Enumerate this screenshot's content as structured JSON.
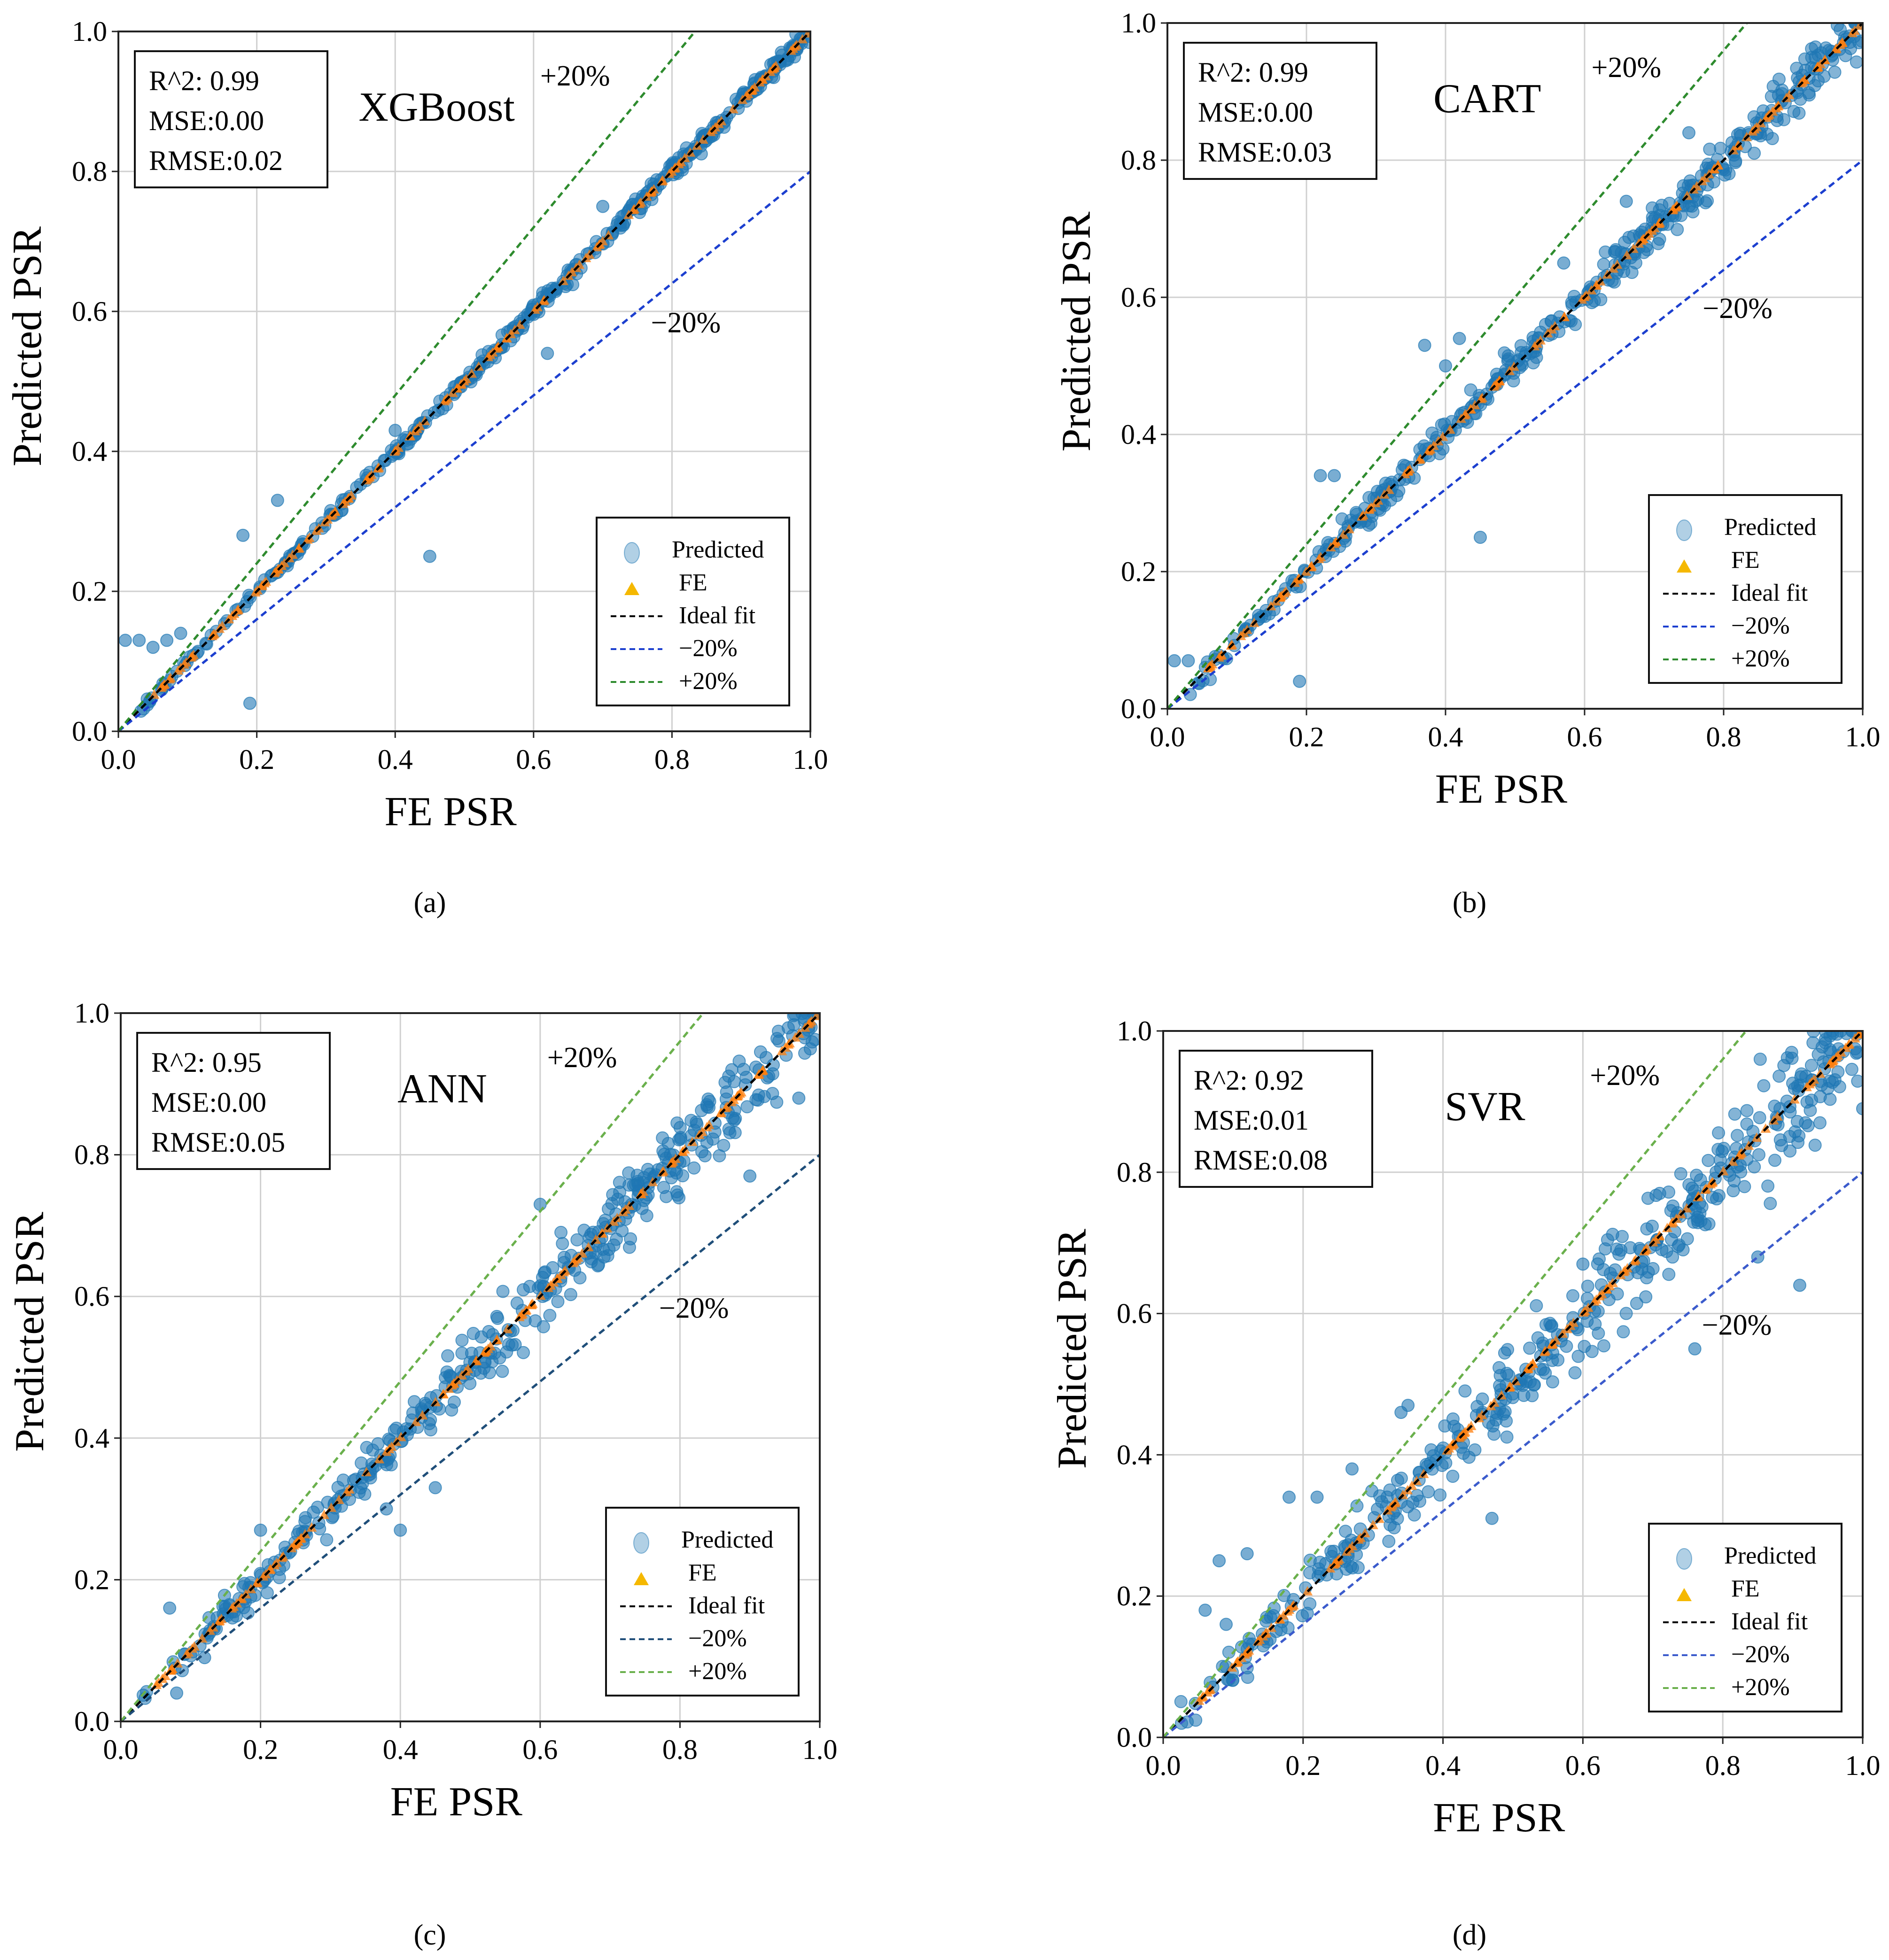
{
  "figure": {
    "panels": [
      "a",
      "b",
      "c",
      "d"
    ]
  },
  "chart_data": [
    {
      "type": "scatter",
      "panel_label": "(a)",
      "title": "XGBoost",
      "xlabel": "FE PSR",
      "ylabel": "Predicted PSR",
      "xlim": [
        0,
        1
      ],
      "ylim": [
        0,
        1
      ],
      "grid": true,
      "x_ticks": [
        "0.0",
        "0.2",
        "0.4",
        "0.6",
        "0.8",
        "1.0"
      ],
      "y_ticks": [
        "0.0",
        "0.2",
        "0.4",
        "0.6",
        "0.8",
        "1.0"
      ],
      "metrics": [
        "R^2: 0.99",
        "MSE:0.00",
        "RMSE:0.02"
      ],
      "band_labels": {
        "plus": "+20%",
        "minus": "−20%"
      },
      "legend": {
        "position": "bottom-right",
        "entries": [
          "Predicted",
          "FE",
          "Ideal fit",
          "−20%",
          "+20%"
        ]
      },
      "spread": 0.012,
      "outliers": [
        [
          0.01,
          0.13
        ],
        [
          0.03,
          0.13
        ],
        [
          0.05,
          0.12
        ],
        [
          0.07,
          0.13
        ],
        [
          0.09,
          0.14
        ],
        [
          0.18,
          0.28
        ],
        [
          0.19,
          0.04
        ],
        [
          0.23,
          0.33
        ],
        [
          0.4,
          0.43
        ],
        [
          0.45,
          0.25
        ],
        [
          0.62,
          0.54
        ],
        [
          0.7,
          0.75
        ]
      ],
      "series": [
        {
          "name": "Predicted",
          "color": "#1f77b4"
        },
        {
          "name": "FE",
          "color": "#ff7f0e"
        },
        {
          "name": "Ideal fit",
          "color": "#000000",
          "points": [
            [
              0,
              0
            ],
            [
              1,
              1
            ]
          ]
        },
        {
          "name": "−20%",
          "color": "#1c3fcf",
          "points": [
            [
              0,
              0
            ],
            [
              1,
              0.8
            ]
          ]
        },
        {
          "name": "+20%",
          "color": "#2e8b2e",
          "points": [
            [
              0,
              0
            ],
            [
              0.8333,
              1
            ]
          ]
        }
      ]
    },
    {
      "type": "scatter",
      "panel_label": "(b)",
      "title": "CART",
      "xlabel": "FE PSR",
      "ylabel": "Predicted PSR",
      "xlim": [
        0,
        1
      ],
      "ylim": [
        0,
        1
      ],
      "grid": true,
      "x_ticks": [
        "0.0",
        "0.2",
        "0.4",
        "0.6",
        "0.8",
        "1.0"
      ],
      "y_ticks": [
        "0.0",
        "0.2",
        "0.4",
        "0.6",
        "0.8",
        "1.0"
      ],
      "metrics": [
        "R^2: 0.99",
        "MSE:0.00",
        "RMSE:0.03"
      ],
      "band_labels": {
        "plus": "+20%",
        "minus": "−20%"
      },
      "legend": {
        "position": "bottom-right",
        "entries": [
          "Predicted",
          "FE",
          "Ideal fit",
          "−20%",
          "+20%"
        ]
      },
      "spread": 0.03,
      "outliers": [
        [
          0.01,
          0.07
        ],
        [
          0.03,
          0.07
        ],
        [
          0.19,
          0.04
        ],
        [
          0.22,
          0.34
        ],
        [
          0.24,
          0.34
        ],
        [
          0.4,
          0.5
        ],
        [
          0.45,
          0.25
        ],
        [
          0.37,
          0.53
        ],
        [
          0.42,
          0.54
        ],
        [
          0.57,
          0.65
        ],
        [
          0.66,
          0.74
        ],
        [
          0.75,
          0.84
        ]
      ],
      "series": [
        {
          "name": "Predicted",
          "color": "#1f77b4"
        },
        {
          "name": "FE",
          "color": "#ff7f0e"
        },
        {
          "name": "Ideal fit",
          "color": "#000000",
          "points": [
            [
              0,
              0
            ],
            [
              1,
              1
            ]
          ]
        },
        {
          "name": "−20%",
          "color": "#1c3fcf",
          "points": [
            [
              0,
              0
            ],
            [
              1,
              0.8
            ]
          ]
        },
        {
          "name": "+20%",
          "color": "#2e8b2e",
          "points": [
            [
              0,
              0
            ],
            [
              0.8333,
              1
            ]
          ]
        }
      ]
    },
    {
      "type": "scatter",
      "panel_label": "(c)",
      "title": "ANN",
      "xlabel": "FE PSR",
      "ylabel": "Predicted PSR",
      "xlim": [
        0,
        1
      ],
      "ylim": [
        0,
        1
      ],
      "grid": true,
      "x_ticks": [
        "0.0",
        "0.2",
        "0.4",
        "0.6",
        "0.8",
        "1.0"
      ],
      "y_ticks": [
        "0.0",
        "0.2",
        "0.4",
        "0.6",
        "0.8",
        "1.0"
      ],
      "metrics": [
        "R^2: 0.95",
        "MSE:0.00",
        "RMSE:0.05"
      ],
      "band_labels": {
        "plus": "+20%",
        "minus": "−20%"
      },
      "legend": {
        "position": "bottom-right",
        "entries": [
          "Predicted",
          "FE",
          "Ideal fit",
          "−20%",
          "+20%"
        ]
      },
      "spread": 0.045,
      "outliers": [
        [
          0.07,
          0.16
        ],
        [
          0.08,
          0.04
        ],
        [
          0.12,
          0.09
        ],
        [
          0.2,
          0.27
        ],
        [
          0.38,
          0.3
        ],
        [
          0.4,
          0.27
        ],
        [
          0.6,
          0.73
        ],
        [
          0.45,
          0.33
        ],
        [
          0.9,
          0.77
        ],
        [
          0.97,
          0.88
        ]
      ],
      "series": [
        {
          "name": "Predicted",
          "color": "#1f77b4"
        },
        {
          "name": "FE",
          "color": "#ff7f0e"
        },
        {
          "name": "Ideal fit",
          "color": "#000000",
          "points": [
            [
              0,
              0
            ],
            [
              1,
              1
            ]
          ]
        },
        {
          "name": "−20%",
          "color": "#1f4e79",
          "points": [
            [
              0,
              0
            ],
            [
              1,
              0.8
            ]
          ]
        },
        {
          "name": "+20%",
          "color": "#6ab04c",
          "points": [
            [
              0,
              0
            ],
            [
              0.8333,
              1
            ]
          ]
        }
      ]
    },
    {
      "type": "scatter",
      "panel_label": "(d)",
      "title": "SVR",
      "xlabel": "FE PSR",
      "ylabel": "Predicted PSR",
      "xlim": [
        0,
        1
      ],
      "ylim": [
        0,
        1
      ],
      "grid": true,
      "x_ticks": [
        "0.0",
        "0.2",
        "0.4",
        "0.6",
        "0.8",
        "1.0"
      ],
      "y_ticks": [
        "0.0",
        "0.2",
        "0.4",
        "0.6",
        "0.8",
        "1.0"
      ],
      "metrics": [
        "R^2: 0.92",
        "MSE:0.01",
        "RMSE:0.08"
      ],
      "band_labels": {
        "plus": "+20%",
        "minus": "−20%"
      },
      "legend": {
        "position": "bottom-right",
        "entries": [
          "Predicted",
          "FE",
          "Ideal fit",
          "−20%",
          "+20%"
        ]
      },
      "spread": 0.07,
      "outliers": [
        [
          0.06,
          0.18
        ],
        [
          0.08,
          0.25
        ],
        [
          0.09,
          0.16
        ],
        [
          0.12,
          0.26
        ],
        [
          0.18,
          0.34
        ],
        [
          0.22,
          0.34
        ],
        [
          0.27,
          0.38
        ],
        [
          0.34,
          0.46
        ],
        [
          0.35,
          0.47
        ],
        [
          0.47,
          0.31
        ],
        [
          0.6,
          0.67
        ],
        [
          0.76,
          0.55
        ],
        [
          0.85,
          0.68
        ],
        [
          0.91,
          0.64
        ],
        [
          1.0,
          0.89
        ]
      ],
      "series": [
        {
          "name": "Predicted",
          "color": "#1f77b4"
        },
        {
          "name": "FE",
          "color": "#ff7f0e"
        },
        {
          "name": "Ideal fit",
          "color": "#000000",
          "points": [
            [
              0,
              0
            ],
            [
              1,
              1
            ]
          ]
        },
        {
          "name": "−20%",
          "color": "#3b5bcc",
          "points": [
            [
              0,
              0
            ],
            [
              1,
              0.8
            ]
          ]
        },
        {
          "name": "+20%",
          "color": "#6ab04c",
          "points": [
            [
              0,
              0
            ],
            [
              0.8333,
              1
            ]
          ]
        }
      ]
    }
  ]
}
